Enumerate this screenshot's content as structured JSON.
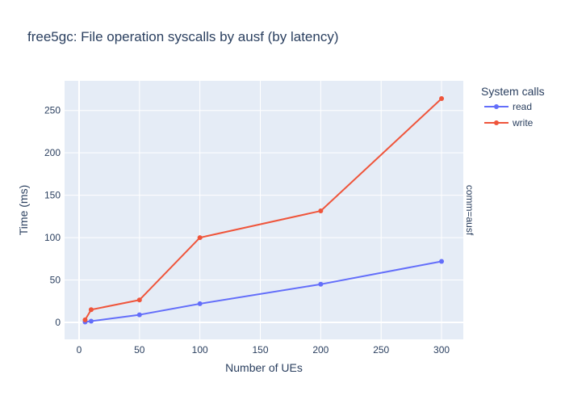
{
  "chart_data": {
    "type": "line",
    "title": "free5gc: File operation syscalls by ausf (by latency)",
    "xlabel": "Number of UEs",
    "ylabel": "Time (ms)",
    "facet_label": "comm=ausf",
    "legend_title": "System calls",
    "legend_position": "top-right",
    "grid": true,
    "xlim": [
      -12,
      318
    ],
    "ylim": [
      -20,
      285
    ],
    "x_ticks": [
      0,
      50,
      100,
      150,
      200,
      250,
      300
    ],
    "y_ticks": [
      0,
      50,
      100,
      150,
      200,
      250
    ],
    "x": [
      5,
      10,
      50,
      100,
      200,
      300
    ],
    "series": [
      {
        "name": "read",
        "color": "#636efa",
        "values": [
          0.5,
          1.5,
          9,
          22,
          45,
          72
        ]
      },
      {
        "name": "write",
        "color": "#ef553b",
        "values": [
          3,
          15,
          26.5,
          100,
          131.5,
          264
        ]
      }
    ],
    "colors": {
      "plot_bg": "#e5ecf6",
      "grid": "#ffffff",
      "text": "#2a3f5f"
    }
  }
}
